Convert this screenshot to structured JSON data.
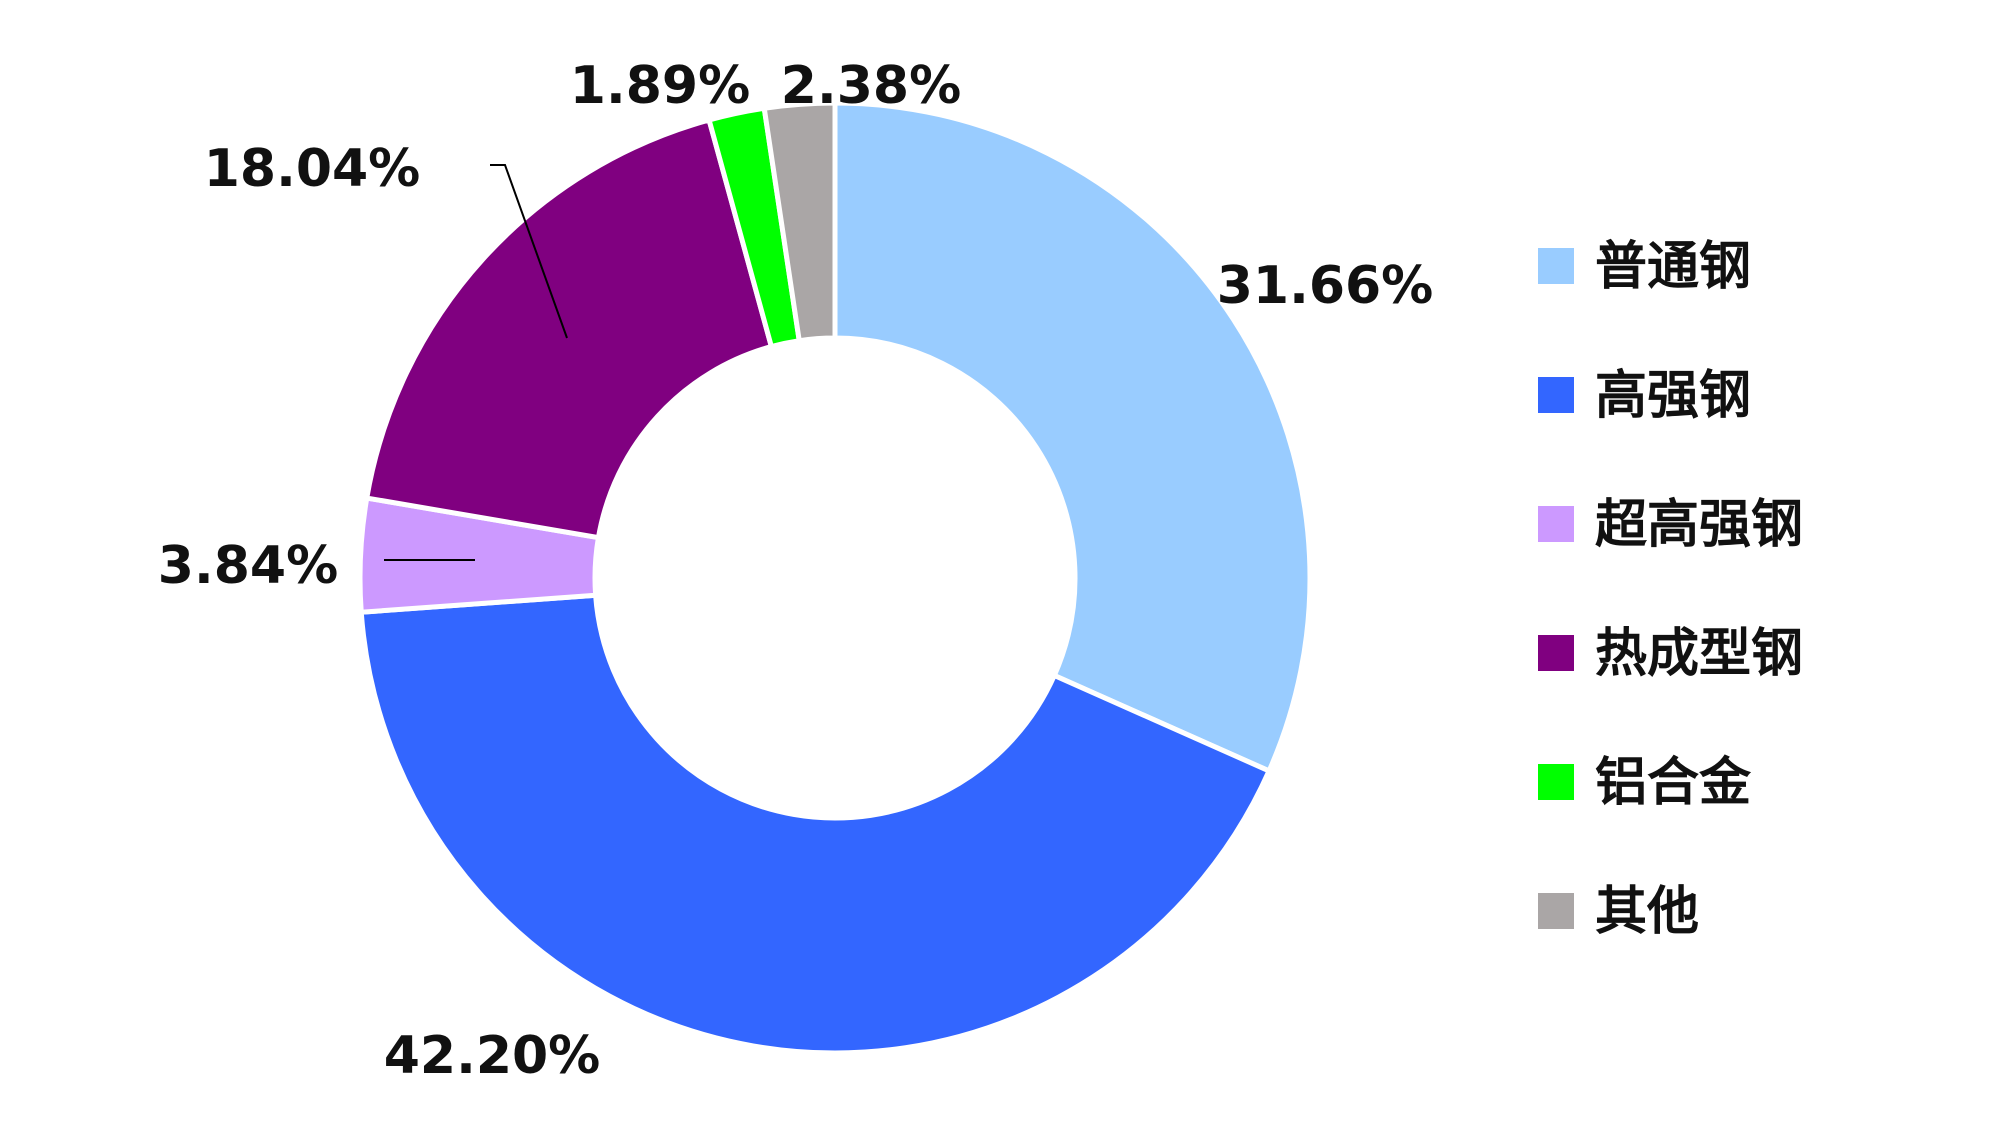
{
  "chart_data": {
    "type": "pie",
    "donut": true,
    "title": "",
    "legend_position": "right",
    "series": [
      {
        "categories": [
          "普通钢",
          "高强钢",
          "超高强钢",
          "热成型钢",
          "铝合金",
          "其他"
        ],
        "values": [
          31.66,
          42.2,
          3.84,
          18.04,
          1.89,
          2.38
        ],
        "labels": [
          "31.66%",
          "42.20%",
          "3.84%",
          "18.04%",
          "1.89%",
          "2.38%"
        ],
        "colors": [
          "#99CCFF",
          "#3366FF",
          "#CC99FF",
          "#800080",
          "#00FF00",
          "#AAA6A6"
        ]
      }
    ]
  }
}
